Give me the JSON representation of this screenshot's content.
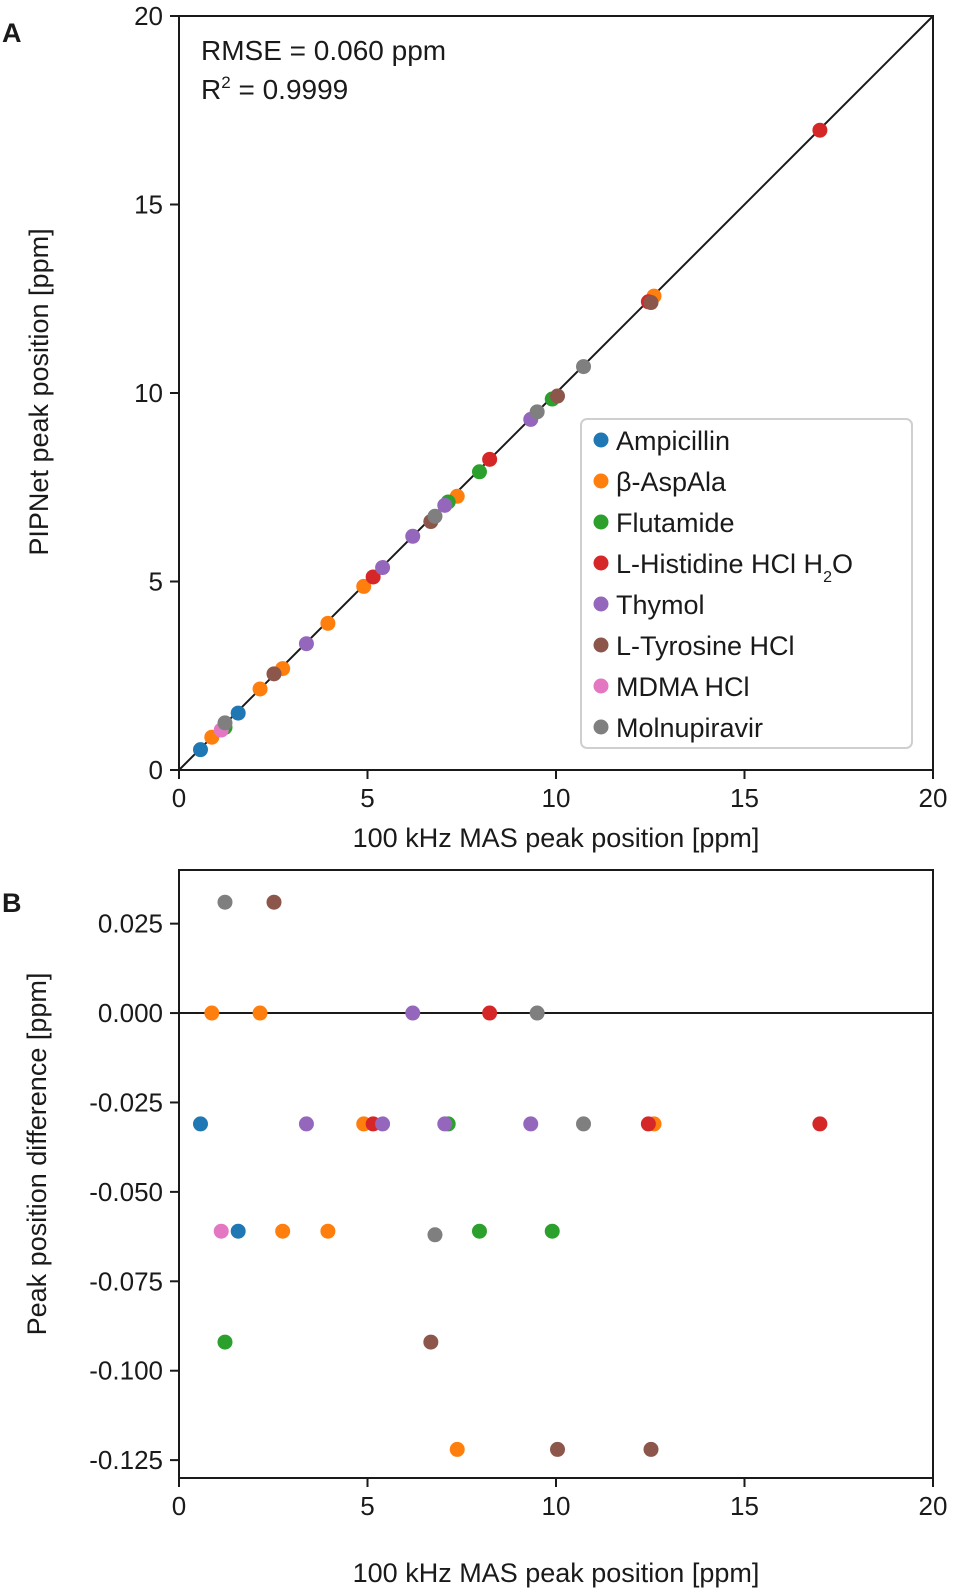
{
  "chart_data": [
    {
      "panel": "A",
      "type": "scatter",
      "xlabel": "100 kHz MAS peak position [ppm]",
      "ylabel": "PIPNet peak position [ppm]",
      "xlim": [
        0,
        20
      ],
      "ylim": [
        0,
        20
      ],
      "xticks": [
        0,
        5,
        10,
        15,
        20
      ],
      "yticks": [
        0,
        5,
        10,
        15,
        20
      ],
      "xtick_labels": [
        "0",
        "5",
        "10",
        "15",
        "20"
      ],
      "ytick_labels": [
        "0",
        "5",
        "10",
        "15",
        "20"
      ],
      "reference_line": "y = x",
      "annotations": {
        "rmse": "RMSE = 0.060 ppm",
        "r2_prefix": "R",
        "r2_sup": "2",
        "r2_rest": " = 0.9999"
      },
      "legend_position": "lower-right",
      "series": [
        {
          "name": "Ampicillin",
          "color": "#1f77b4",
          "points": [
            [
              0.57,
              0.54
            ],
            [
              1.57,
              1.51
            ]
          ]
        },
        {
          "name": "β-AspAla",
          "color": "#ff7f0e",
          "points": [
            [
              0.87,
              0.87
            ],
            [
              2.15,
              2.15
            ],
            [
              2.75,
              2.69
            ],
            [
              3.95,
              3.89
            ],
            [
              4.9,
              4.87
            ],
            [
              7.38,
              7.26
            ],
            [
              12.6,
              12.57
            ]
          ]
        },
        {
          "name": "Flutamide",
          "color": "#2ca02c",
          "points": [
            [
              1.22,
              1.13
            ],
            [
              7.14,
              7.11
            ],
            [
              7.97,
              7.91
            ],
            [
              9.9,
              9.84
            ]
          ]
        },
        {
          "name": "L-Histidine HCl H",
          "sub": "2",
          "suffix": "O",
          "color": "#d62728",
          "points": [
            [
              5.15,
              5.12
            ],
            [
              8.24,
              8.24
            ],
            [
              12.45,
              12.42
            ],
            [
              17.0,
              16.97
            ]
          ]
        },
        {
          "name": "Thymol",
          "color": "#9467bd",
          "points": [
            [
              3.38,
              3.35
            ],
            [
              5.4,
              5.37
            ],
            [
              6.2,
              6.2
            ],
            [
              7.05,
              7.02
            ],
            [
              9.33,
              9.3
            ]
          ]
        },
        {
          "name": "L-Tyrosine HCl",
          "color": "#8c564b",
          "points": [
            [
              2.52,
              2.55
            ],
            [
              6.68,
              6.59
            ],
            [
              10.04,
              9.92
            ],
            [
              12.52,
              12.4
            ]
          ]
        },
        {
          "name": "MDMA HCl",
          "color": "#e377c2",
          "points": [
            [
              1.12,
              1.06
            ]
          ]
        },
        {
          "name": "Molnupiravir",
          "color": "#7f7f7f",
          "points": [
            [
              1.22,
              1.25
            ],
            [
              6.79,
              6.73
            ],
            [
              9.5,
              9.5
            ],
            [
              10.73,
              10.7
            ]
          ]
        }
      ]
    },
    {
      "panel": "B",
      "type": "scatter",
      "xlabel": "100 kHz MAS peak position [ppm]",
      "ylabel": "Peak position difference [ppm]",
      "xlim": [
        0,
        20
      ],
      "ylim": [
        -0.13,
        0.04
      ],
      "xticks": [
        0,
        5,
        10,
        15,
        20
      ],
      "yticks": [
        0.025,
        0.0,
        -0.025,
        -0.05,
        -0.075,
        -0.1,
        -0.125
      ],
      "xtick_labels": [
        "0",
        "5",
        "10",
        "15",
        "20"
      ],
      "ytick_labels": [
        "0.025",
        "0.000",
        "-0.025",
        "-0.050",
        "-0.075",
        "-0.100",
        "-0.125"
      ],
      "reference_line": "y = 0",
      "series": [
        {
          "name": "Ampicillin",
          "color": "#1f77b4",
          "points": [
            [
              0.57,
              -0.031
            ],
            [
              1.57,
              -0.061
            ]
          ]
        },
        {
          "name": "β-AspAla",
          "color": "#ff7f0e",
          "points": [
            [
              0.87,
              0.0
            ],
            [
              2.15,
              0.0
            ],
            [
              2.75,
              -0.061
            ],
            [
              3.95,
              -0.061
            ],
            [
              4.9,
              -0.031
            ],
            [
              7.38,
              -0.122
            ],
            [
              12.6,
              -0.031
            ]
          ]
        },
        {
          "name": "Flutamide",
          "color": "#2ca02c",
          "points": [
            [
              1.22,
              -0.092
            ],
            [
              7.14,
              -0.031
            ],
            [
              7.97,
              -0.061
            ],
            [
              9.9,
              -0.061
            ]
          ]
        },
        {
          "name": "L-Histidine HCl H2O",
          "color": "#d62728",
          "points": [
            [
              5.15,
              -0.031
            ],
            [
              8.24,
              0.0
            ],
            [
              12.45,
              -0.031
            ],
            [
              17.0,
              -0.031
            ]
          ]
        },
        {
          "name": "Thymol",
          "color": "#9467bd",
          "points": [
            [
              3.38,
              -0.031
            ],
            [
              5.4,
              -0.031
            ],
            [
              6.2,
              0.0
            ],
            [
              7.05,
              -0.031
            ],
            [
              9.33,
              -0.031
            ]
          ]
        },
        {
          "name": "L-Tyrosine HCl",
          "color": "#8c564b",
          "points": [
            [
              2.52,
              0.031
            ],
            [
              6.68,
              -0.092
            ],
            [
              10.04,
              -0.122
            ],
            [
              12.52,
              -0.122
            ]
          ]
        },
        {
          "name": "MDMA HCl",
          "color": "#e377c2",
          "points": [
            [
              1.12,
              -0.061
            ]
          ]
        },
        {
          "name": "Molnupiravir",
          "color": "#7f7f7f",
          "points": [
            [
              1.22,
              0.031
            ],
            [
              6.79,
              -0.062
            ],
            [
              9.5,
              0.0
            ],
            [
              10.73,
              -0.031
            ]
          ]
        }
      ]
    }
  ],
  "panel_labels": {
    "a": "A",
    "b": "B"
  }
}
